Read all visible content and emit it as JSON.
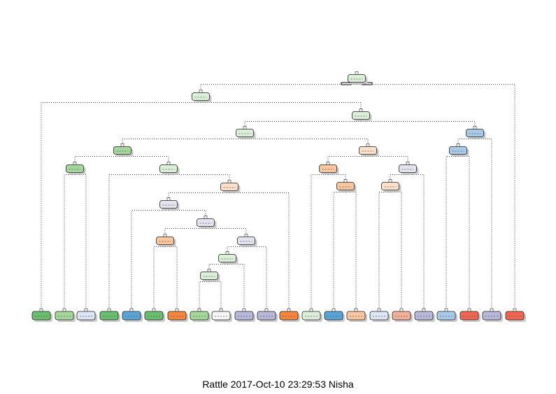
{
  "caption": "Rattle 2017-Oct-10 23:29:53 Nisha",
  "palette": {
    "green": "#6ABF6F",
    "lightgreen": "#A4D89B",
    "palegreen": "#DCEFD8",
    "orange": "#F7853B",
    "lightorange": "#F9C79E",
    "paleorange": "#FCE0CB",
    "blue": "#5BA4D6",
    "lightblue": "#A9CBEA",
    "paleblue": "#DCE6F4",
    "purple": "#B8B8DA",
    "palepurple": "#E4E4F0",
    "red": "#F2654E",
    "salmon": "#F5B09A",
    "white": "#F6F6F6"
  },
  "tree": {
    "nodes": [
      {
        "id": "n1",
        "color": "palegreen"
      },
      {
        "id": "n2",
        "color": "palegreen"
      },
      {
        "id": "n3",
        "color": "palegreen"
      },
      {
        "id": "n4",
        "color": "palegreen"
      },
      {
        "id": "n5",
        "color": "lightblue"
      },
      {
        "id": "n6",
        "color": "lightgreen"
      },
      {
        "id": "n7",
        "color": "paleorange"
      },
      {
        "id": "n8",
        "color": "lightblue"
      },
      {
        "id": "n9",
        "color": "lightgreen"
      },
      {
        "id": "n10",
        "color": "palegreen"
      },
      {
        "id": "n11",
        "color": "lightorange"
      },
      {
        "id": "n12",
        "color": "palepurple"
      },
      {
        "id": "n13",
        "color": "paleorange"
      },
      {
        "id": "n14",
        "color": "lightorange"
      },
      {
        "id": "n15",
        "color": "paleorange"
      },
      {
        "id": "n16",
        "color": "palepurple"
      },
      {
        "id": "n17",
        "color": "palepurple"
      },
      {
        "id": "n18",
        "color": "lightorange"
      },
      {
        "id": "n19",
        "color": "palepurple"
      },
      {
        "id": "n20",
        "color": "palegreen"
      },
      {
        "id": "n21",
        "color": "palegreen"
      }
    ],
    "leaves": [
      {
        "id": "L1",
        "color": "green"
      },
      {
        "id": "L2",
        "color": "lightgreen"
      },
      {
        "id": "L3",
        "color": "paleblue"
      },
      {
        "id": "L4",
        "color": "green"
      },
      {
        "id": "L5",
        "color": "blue"
      },
      {
        "id": "L6",
        "color": "green"
      },
      {
        "id": "L7",
        "color": "orange"
      },
      {
        "id": "L8",
        "color": "lightgreen"
      },
      {
        "id": "L9",
        "color": "white"
      },
      {
        "id": "L10",
        "color": "purple"
      },
      {
        "id": "L11",
        "color": "purple"
      },
      {
        "id": "L12",
        "color": "orange"
      },
      {
        "id": "L13",
        "color": "palegreen"
      },
      {
        "id": "L14",
        "color": "blue"
      },
      {
        "id": "L15",
        "color": "lightorange"
      },
      {
        "id": "L16",
        "color": "paleblue"
      },
      {
        "id": "L17",
        "color": "salmon"
      },
      {
        "id": "L18",
        "color": "purple"
      },
      {
        "id": "L19",
        "color": "lightblue"
      },
      {
        "id": "L20",
        "color": "red"
      },
      {
        "id": "L21",
        "color": "purple"
      },
      {
        "id": "L22",
        "color": "red"
      }
    ],
    "edges": [
      [
        "n1",
        "n2"
      ],
      [
        "n1",
        "L22"
      ],
      [
        "n2",
        "L1"
      ],
      [
        "n2",
        "n3"
      ],
      [
        "n3",
        "n4"
      ],
      [
        "n3",
        "n5"
      ],
      [
        "n4",
        "n6"
      ],
      [
        "n4",
        "n7"
      ],
      [
        "n5",
        "n8"
      ],
      [
        "n5",
        "L21"
      ],
      [
        "n6",
        "n9"
      ],
      [
        "n6",
        "n10"
      ],
      [
        "n9",
        "L2"
      ],
      [
        "n9",
        "L3"
      ],
      [
        "n10",
        "L4"
      ],
      [
        "n10",
        "n13"
      ],
      [
        "n13",
        "n16"
      ],
      [
        "n13",
        "L12"
      ],
      [
        "n16",
        "L5"
      ],
      [
        "n16",
        "n17"
      ],
      [
        "n17",
        "n18"
      ],
      [
        "n17",
        "n19"
      ],
      [
        "n18",
        "L6"
      ],
      [
        "n18",
        "L7"
      ],
      [
        "n19",
        "n20"
      ],
      [
        "n19",
        "L11"
      ],
      [
        "n20",
        "n21"
      ],
      [
        "n20",
        "L10"
      ],
      [
        "n21",
        "L8"
      ],
      [
        "n21",
        "L9"
      ],
      [
        "n7",
        "n11"
      ],
      [
        "n7",
        "n12"
      ],
      [
        "n11",
        "L13"
      ],
      [
        "n11",
        "n14"
      ],
      [
        "n14",
        "L14"
      ],
      [
        "n14",
        "L15"
      ],
      [
        "n12",
        "n15"
      ],
      [
        "n12",
        "L18"
      ],
      [
        "n15",
        "L16"
      ],
      [
        "n15",
        "L17"
      ],
      [
        "n8",
        "L19"
      ],
      [
        "n8",
        "L20"
      ]
    ]
  }
}
